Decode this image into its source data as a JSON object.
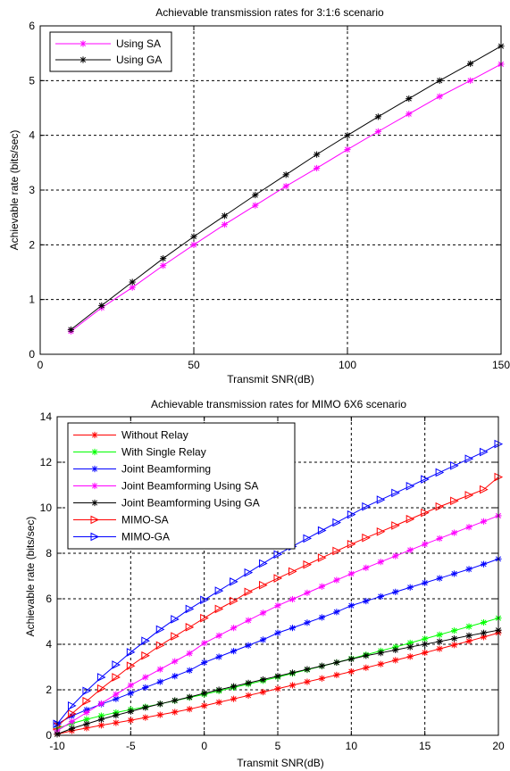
{
  "chart_data": [
    {
      "type": "line",
      "title": "Achievable transmission rates for 3:1:6 scenario",
      "xlabel": "Transmit SNR(dB)",
      "ylabel": "Achievable rate (bits/sec)",
      "xlim": [
        0,
        150
      ],
      "ylim": [
        0,
        6
      ],
      "xticks": [
        0,
        50,
        100,
        150
      ],
      "yticks": [
        0,
        1,
        2,
        3,
        4,
        5,
        6
      ],
      "grid": true,
      "legend": "top-left",
      "x": [
        10,
        20,
        30,
        40,
        50,
        60,
        70,
        80,
        90,
        100,
        110,
        120,
        130,
        140,
        150
      ],
      "series": [
        {
          "name": "Using SA",
          "color": "#ff00ff",
          "marker": "star",
          "values": [
            0.42,
            0.85,
            1.22,
            1.62,
            2.0,
            2.37,
            2.72,
            3.07,
            3.4,
            3.74,
            4.07,
            4.39,
            4.71,
            5.0,
            5.3
          ]
        },
        {
          "name": "Using GA",
          "color": "#000000",
          "marker": "star",
          "values": [
            0.45,
            0.89,
            1.32,
            1.75,
            2.15,
            2.53,
            2.91,
            3.28,
            3.65,
            4.0,
            4.34,
            4.67,
            5.0,
            5.31,
            5.63
          ]
        }
      ]
    },
    {
      "type": "line",
      "title": "Achievable transmission rates for MIMO 6X6 scenario",
      "xlabel": "Transmit SNR(dB)",
      "ylabel": "Achievable rate (bits/sec)",
      "xlim": [
        -10,
        20
      ],
      "ylim": [
        0,
        14
      ],
      "xticks": [
        -10,
        -5,
        0,
        5,
        10,
        15,
        20
      ],
      "yticks": [
        0,
        2,
        4,
        6,
        8,
        10,
        12,
        14
      ],
      "grid": true,
      "legend": "top-left",
      "x": [
        -10,
        -9,
        -8,
        -7,
        -6,
        -5,
        -4,
        -3,
        -2,
        -1,
        0,
        1,
        2,
        3,
        4,
        5,
        6,
        7,
        8,
        9,
        10,
        11,
        12,
        13,
        14,
        15,
        16,
        17,
        18,
        19,
        20
      ],
      "series": [
        {
          "name": "Without Relay",
          "color": "#ff0000",
          "marker": "star",
          "values": [
            0.05,
            0.2,
            0.32,
            0.44,
            0.55,
            0.66,
            0.78,
            0.9,
            1.02,
            1.15,
            1.3,
            1.45,
            1.6,
            1.75,
            1.9,
            2.05,
            2.2,
            2.35,
            2.5,
            2.65,
            2.8,
            2.97,
            3.13,
            3.3,
            3.46,
            3.63,
            3.8,
            3.97,
            4.14,
            4.32,
            4.5
          ]
        },
        {
          "name": "With Single Relay",
          "color": "#00ff00",
          "marker": "star",
          "values": [
            0.3,
            0.52,
            0.7,
            0.86,
            1.0,
            1.13,
            1.25,
            1.38,
            1.52,
            1.66,
            1.8,
            1.95,
            2.1,
            2.25,
            2.4,
            2.56,
            2.72,
            2.88,
            3.04,
            3.2,
            3.37,
            3.54,
            3.71,
            3.88,
            4.06,
            4.24,
            4.42,
            4.6,
            4.78,
            4.96,
            5.15
          ]
        },
        {
          "name": "Joint Beamforming",
          "color": "#0000ff",
          "marker": "star",
          "values": [
            0.5,
            0.85,
            1.12,
            1.37,
            1.6,
            1.85,
            2.1,
            2.35,
            2.6,
            2.85,
            3.2,
            3.45,
            3.7,
            3.95,
            4.2,
            4.5,
            4.72,
            4.95,
            5.18,
            5.42,
            5.7,
            5.9,
            6.1,
            6.3,
            6.5,
            6.7,
            6.9,
            7.1,
            7.3,
            7.52,
            7.75
          ]
        },
        {
          "name": "Joint Beamforming Using SA",
          "color": "#ff00ff",
          "marker": "star",
          "values": [
            0.2,
            0.6,
            1.0,
            1.4,
            1.8,
            2.2,
            2.55,
            2.9,
            3.25,
            3.6,
            4.05,
            4.38,
            4.72,
            5.05,
            5.38,
            5.7,
            5.98,
            6.26,
            6.54,
            6.82,
            7.1,
            7.36,
            7.62,
            7.88,
            8.14,
            8.4,
            8.65,
            8.9,
            9.15,
            9.4,
            9.65
          ]
        },
        {
          "name": "Joint Beamforming Using GA",
          "color": "#000000",
          "marker": "star",
          "values": [
            0.05,
            0.3,
            0.5,
            0.7,
            0.88,
            1.05,
            1.22,
            1.38,
            1.53,
            1.68,
            1.85,
            2.0,
            2.15,
            2.3,
            2.45,
            2.6,
            2.75,
            2.9,
            3.05,
            3.2,
            3.35,
            3.5,
            3.62,
            3.75,
            3.88,
            4.0,
            4.12,
            4.25,
            4.38,
            4.5,
            4.62
          ]
        },
        {
          "name": "MIMO-SA",
          "color": "#ff0000",
          "marker": "triangle-right",
          "values": [
            0.4,
            0.95,
            1.5,
            2.05,
            2.55,
            3.05,
            3.5,
            3.95,
            4.35,
            4.75,
            5.15,
            5.55,
            5.9,
            6.3,
            6.6,
            6.9,
            7.2,
            7.5,
            7.8,
            8.1,
            8.4,
            8.68,
            8.95,
            9.22,
            9.5,
            9.78,
            10.05,
            10.3,
            10.55,
            10.8,
            11.35
          ]
        },
        {
          "name": "MIMO-GA",
          "color": "#0000ff",
          "marker": "triangle-right",
          "values": [
            0.5,
            1.3,
            1.95,
            2.55,
            3.1,
            3.65,
            4.15,
            4.65,
            5.1,
            5.55,
            5.95,
            6.35,
            6.75,
            7.15,
            7.55,
            7.95,
            8.3,
            8.65,
            9.0,
            9.35,
            9.7,
            10.05,
            10.35,
            10.65,
            10.95,
            11.25,
            11.55,
            11.85,
            12.15,
            12.45,
            12.8
          ]
        }
      ]
    }
  ]
}
